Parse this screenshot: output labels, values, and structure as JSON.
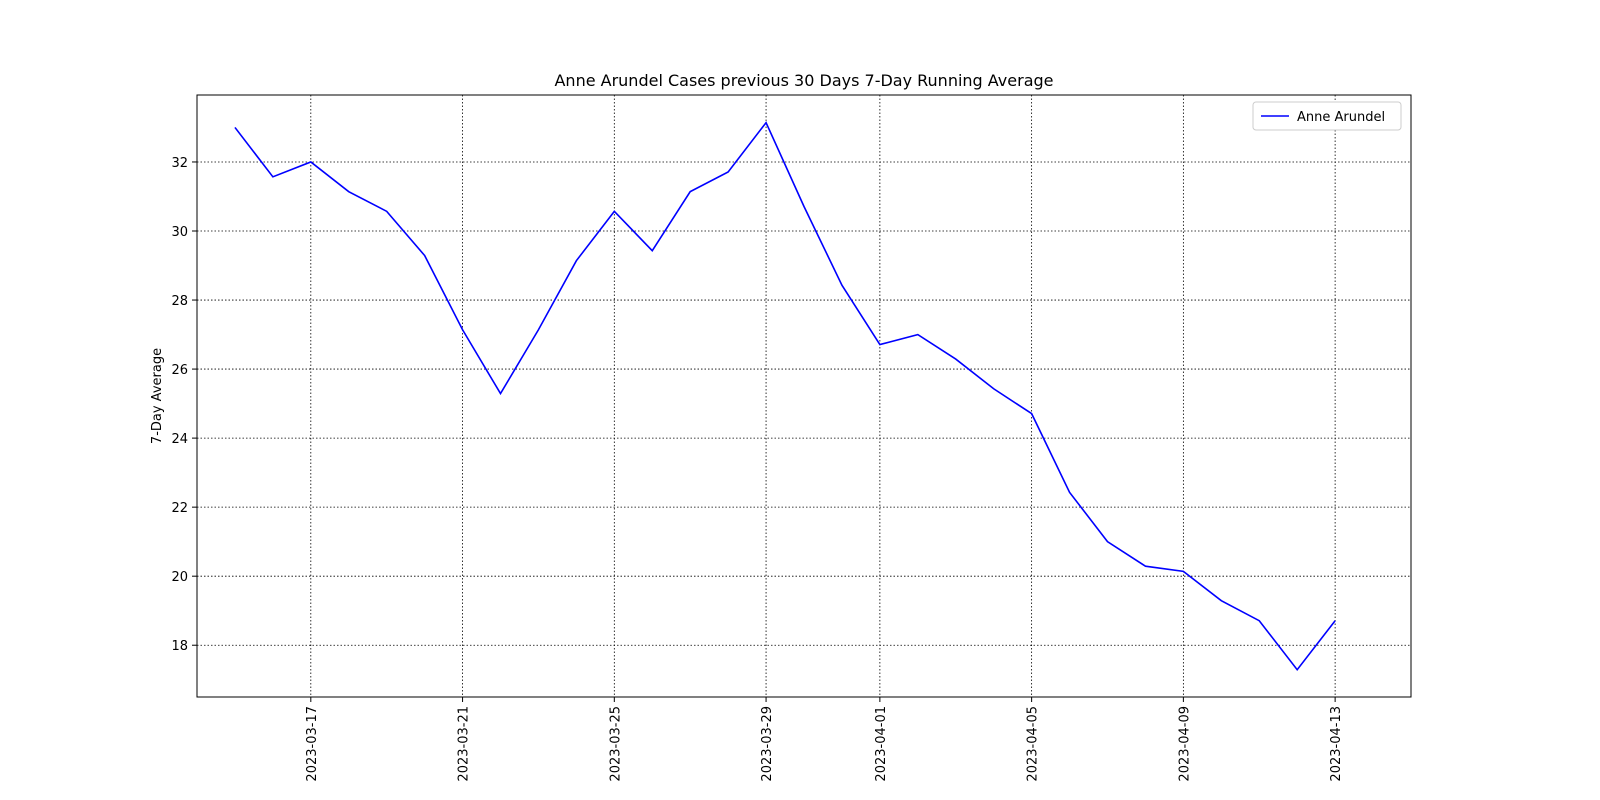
{
  "chart_data": {
    "type": "line",
    "title": "Anne Arundel Cases previous 30 Days 7-Day Running Average",
    "y_label": "7-Day Average",
    "x": [
      "2023-03-15",
      "2023-03-16",
      "2023-03-17",
      "2023-03-18",
      "2023-03-19",
      "2023-03-20",
      "2023-03-21",
      "2023-03-22",
      "2023-03-23",
      "2023-03-24",
      "2023-03-25",
      "2023-03-26",
      "2023-03-27",
      "2023-03-28",
      "2023-03-29",
      "2023-03-30",
      "2023-03-31",
      "2023-04-01",
      "2023-04-02",
      "2023-04-03",
      "2023-04-04",
      "2023-04-05",
      "2023-04-06",
      "2023-04-07",
      "2023-04-08",
      "2023-04-09",
      "2023-04-10",
      "2023-04-11",
      "2023-04-12",
      "2023-04-13"
    ],
    "series": [
      {
        "name": "Anne Arundel",
        "color": "#0000ff",
        "values": [
          33.0,
          31.57,
          32.0,
          31.14,
          30.57,
          29.29,
          27.14,
          25.29,
          27.14,
          29.14,
          30.57,
          29.43,
          31.14,
          31.71,
          33.14,
          30.71,
          28.43,
          26.71,
          27.0,
          26.29,
          25.43,
          24.71,
          22.43,
          21.0,
          20.29,
          20.14,
          19.29,
          18.71,
          17.29,
          18.71
        ]
      }
    ],
    "xlim": [
      "2023-03-14",
      "2023-04-15"
    ],
    "xticks": [
      "2023-03-17",
      "2023-03-21",
      "2023-03-25",
      "2023-03-29",
      "2023-04-01",
      "2023-04-05",
      "2023-04-09",
      "2023-04-13"
    ],
    "ylim": [
      16.5,
      33.94
    ],
    "yticks": [
      18,
      20,
      22,
      24,
      26,
      28,
      30,
      32
    ],
    "grid": true,
    "legend": "upper-right"
  }
}
